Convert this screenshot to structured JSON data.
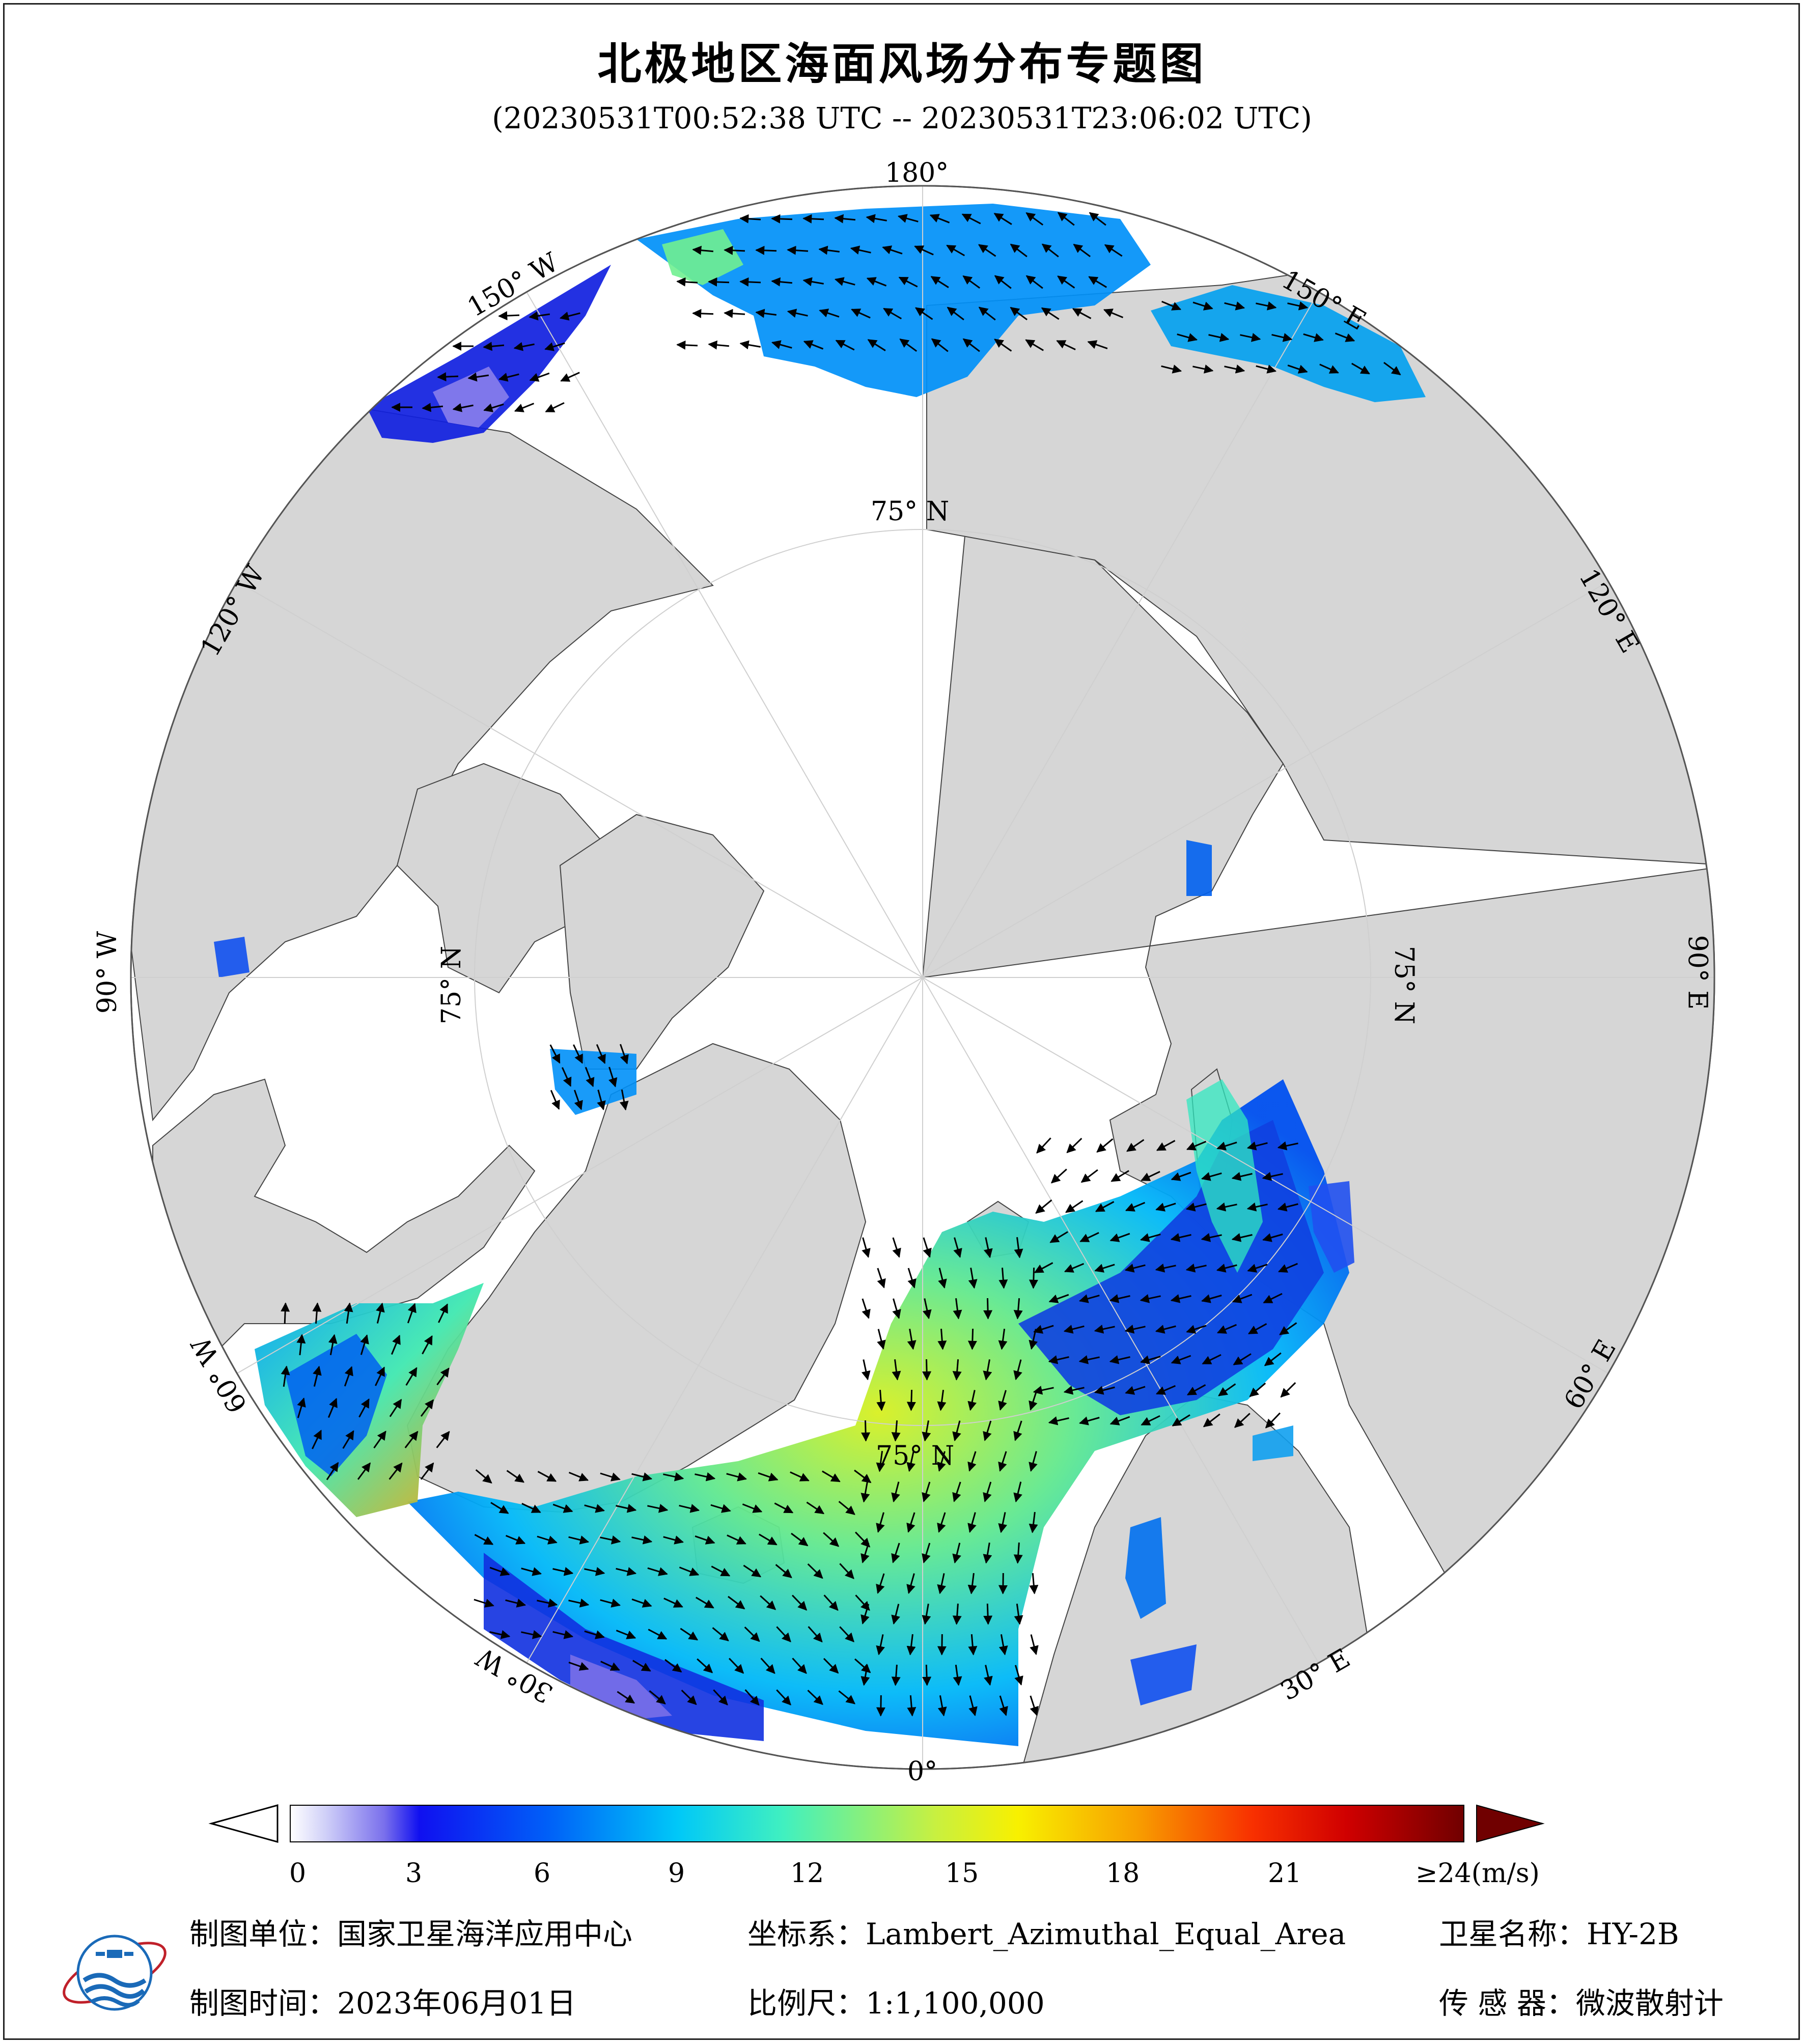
{
  "title": "北极地区海面风场分布专题图",
  "subtitle": "(20230531T00:52:38 UTC -- 20230531T23:06:02 UTC)",
  "map": {
    "projection_center": "North Pole",
    "longitude_labels": [
      "180°",
      "150° E",
      "120° E",
      "90° E",
      "60° E",
      "30° E",
      "0°",
      "30° W",
      "60° W",
      "90° W",
      "120° W",
      "150° W"
    ],
    "latitude_labels": [
      "75° N",
      "75° N",
      "75° N",
      "75° N"
    ],
    "colors": {
      "land": "#d6d6d6",
      "ice_or_nodata": "#ffffff",
      "graticule": "#c8c8c8",
      "coast": "#333333"
    }
  },
  "colorbar": {
    "unit": "(m/s)",
    "min": 0,
    "max": 24,
    "tick_labels": [
      "0",
      "3",
      "6",
      "9",
      "12",
      "15",
      "18",
      "21",
      "≥24(m/s)"
    ],
    "tick_values": [
      0,
      3,
      6,
      9,
      12,
      15,
      18,
      21
    ],
    "colors": [
      "#ffffff",
      "#d0d0f8",
      "#a8a0f0",
      "#6a60e8",
      "#2020f0",
      "#0030f0",
      "#0060f8",
      "#0090f8",
      "#00c0f8",
      "#00e8e8",
      "#40f0b0",
      "#90f070",
      "#d0f030",
      "#f8f800",
      "#f8c800",
      "#f89000",
      "#f85000",
      "#e81000",
      "#c00000",
      "#900000",
      "#700000"
    ]
  },
  "footer": {
    "org_label": "制图单位：国家卫星海洋应用中心",
    "date_label": "制图时间：2023年06月01日",
    "crs_label": "坐标系：Lambert_Azimuthal_Equal_Area",
    "scale_label": "比例尺：1:1,100,000",
    "satellite_label": "卫星名称：HY-2B",
    "sensor_label": "传 感 器：微波散射计"
  }
}
